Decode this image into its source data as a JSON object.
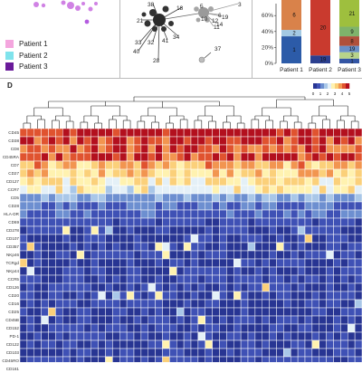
{
  "panel_d": {
    "letter": "D"
  },
  "legend": {
    "items": [
      {
        "label": "Patient  1",
        "color": "#f4a6de"
      },
      {
        "label": "Patient  2",
        "color": "#7fe3ec"
      },
      {
        "label": "Patient  3",
        "color": "#6a1b9a"
      }
    ]
  },
  "network": {
    "node_labels": [
      "38",
      "3",
      "18",
      "5",
      "19",
      "14",
      "12",
      "10",
      "11",
      "21",
      "33",
      "32",
      "41",
      "34",
      "40",
      "28",
      "6",
      "37"
    ]
  },
  "chart_data": [
    {
      "type": "bar",
      "categories": [
        "Patient 1",
        "Patient 2",
        "Patient 3"
      ],
      "ylim": [
        0,
        100
      ],
      "ytick_labels": [
        "0%",
        "20%",
        "40%",
        "60%"
      ],
      "stacked": true,
      "segment_labels": [
        {
          "category": "Patient 1",
          "labels": [
            "1",
            "2",
            "6"
          ]
        },
        {
          "category": "Patient 2",
          "labels": [
            "19",
            "20"
          ]
        },
        {
          "category": "Patient 3",
          "labels": [
            "1",
            "3",
            "19",
            "8",
            "9",
            "21"
          ]
        }
      ]
    },
    {
      "type": "heatmap",
      "rows": [
        "CD45",
        "CD38",
        "CD8",
        "CD45RA",
        "CD7",
        "CD27",
        "CD127",
        "CCR7",
        "CD5",
        "CD28",
        "HLA-DR",
        "CD69",
        "CD278",
        "CD107",
        "CD357",
        "NKp46",
        "TCRgd",
        "NKp44",
        "CCR5",
        "CD126",
        "CD20",
        "CD16",
        "CD25",
        "CD45B",
        "CD152",
        "PD-1",
        "CD122",
        "CD103",
        "CD45RO",
        "CD161"
      ],
      "columns": 48,
      "color_scale": {
        "min": 0,
        "max": 5,
        "tick_labels": [
          "0",
          "1",
          "2",
          "3",
          "4",
          "5"
        ]
      },
      "row_level": [
        4.8,
        4.5,
        4.2,
        4.4,
        3.5,
        3.2,
        2.8,
        2.6,
        1.4,
        1.0,
        0.9,
        0.7,
        0.45,
        0.45,
        0.45,
        0.45,
        0.45,
        0.45,
        0.45,
        0.45,
        0.45,
        0.45,
        0.45,
        0.45,
        0.45,
        0.45,
        0.45,
        0.45,
        0.5,
        0.45
      ]
    }
  ]
}
